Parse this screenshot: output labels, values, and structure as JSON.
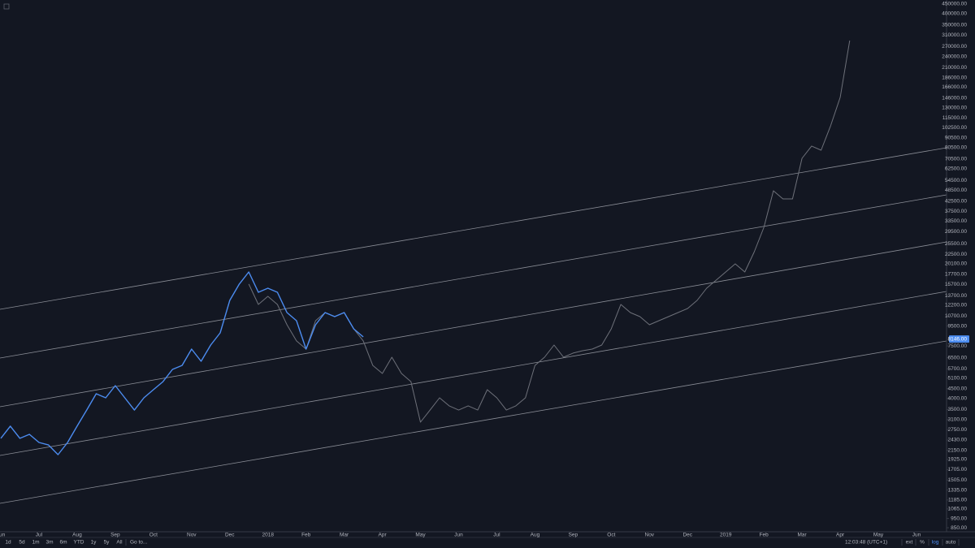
{
  "chart_data": {
    "type": "line",
    "log_scale": true,
    "grid": false,
    "categories": [
      "Jun",
      null,
      null,
      null,
      "Jul",
      null,
      null,
      null,
      "Aug",
      null,
      null,
      null,
      "Sep",
      null,
      null,
      null,
      "Oct",
      null,
      null,
      null,
      "Nov",
      null,
      null,
      null,
      "Dec",
      null,
      null,
      null,
      "2018",
      null,
      null,
      null,
      "Feb",
      null,
      null,
      null,
      "Mar",
      null,
      null,
      null,
      "Apr",
      null,
      null,
      null,
      "May",
      null,
      null,
      null,
      "Jun",
      null,
      null,
      null,
      "Jul",
      null,
      null,
      null,
      "Aug",
      null,
      null,
      null,
      "Sep",
      null,
      null,
      null,
      "Oct",
      null,
      null,
      null,
      "Nov",
      null,
      null,
      null,
      "Dec",
      null,
      null,
      null,
      "2019",
      null,
      null,
      null,
      "Feb",
      null,
      null,
      null,
      "Mar",
      null,
      null,
      null,
      "Apr",
      null,
      null,
      null,
      "May",
      null,
      null,
      null,
      "Jun"
    ],
    "series": [
      {
        "color": "#4c8cf0",
        "values": [
          2480,
          2870,
          2480,
          2600,
          2360,
          2290,
          2040,
          2360,
          2870,
          3480,
          4230,
          4030,
          4660,
          4030,
          3480,
          4030,
          4440,
          4890,
          5660,
          5940,
          7220,
          6240,
          7580,
          8770,
          12940,
          15720,
          18180,
          14260,
          14970,
          14260,
          11180,
          10140,
          7220,
          9660,
          11180,
          10650,
          11180,
          9200,
          8350,
          null,
          null,
          null,
          null,
          null,
          null,
          null,
          null,
          null,
          null,
          null,
          null,
          null,
          null,
          null,
          null,
          null,
          null,
          null,
          null,
          null,
          null,
          null,
          null,
          null,
          null,
          null,
          null,
          null,
          null,
          null,
          null,
          null,
          null,
          null,
          null,
          null,
          null,
          null,
          null,
          null,
          null,
          null,
          null,
          null,
          null,
          null,
          null,
          null,
          null,
          null,
          null,
          null,
          null,
          null,
          null,
          null,
          null
        ]
      },
      {
        "color": "#6e717a",
        "values": [
          null,
          null,
          null,
          null,
          null,
          null,
          null,
          null,
          null,
          null,
          null,
          null,
          null,
          null,
          null,
          null,
          null,
          null,
          null,
          null,
          null,
          null,
          null,
          null,
          null,
          null,
          15720,
          12320,
          13580,
          12320,
          9660,
          7960,
          7220,
          10140,
          11180,
          10650,
          11180,
          9200,
          7960,
          5940,
          5390,
          6550,
          5390,
          4890,
          3010,
          3480,
          4030,
          3660,
          3480,
          3660,
          3480,
          4440,
          4030,
          3480,
          3660,
          4030,
          5940,
          6550,
          7580,
          6550,
          6880,
          7080,
          7220,
          7580,
          9200,
          12320,
          11180,
          10650,
          9660,
          10140,
          10650,
          11180,
          11740,
          12940,
          14970,
          16490,
          18180,
          20040,
          18180,
          23190,
          31030,
          48080,
          43620,
          43620,
          70920,
          82090,
          78170,
          104700,
          147100,
          290500,
          null,
          null,
          null,
          null,
          null,
          null,
          null
        ]
      }
    ],
    "ylim": [
      810,
      472000
    ],
    "yticks": [
      {
        "value": 450000,
        "label": "450000.00"
      },
      {
        "value": 400000,
        "label": "400000.00"
      },
      {
        "value": 350000,
        "label": "350000.00"
      },
      {
        "value": 310000,
        "label": "310000.00"
      },
      {
        "value": 270000,
        "label": "270000.00"
      },
      {
        "value": 240000,
        "label": "240000.00"
      },
      {
        "value": 210000,
        "label": "210000.00"
      },
      {
        "value": 186000,
        "label": "186000.00"
      },
      {
        "value": 166000,
        "label": "166000.00"
      },
      {
        "value": 146000,
        "label": "146000.00"
      },
      {
        "value": 130000,
        "label": "130000.00"
      },
      {
        "value": 115000,
        "label": "115000.00"
      },
      {
        "value": 102500,
        "label": "102500.00"
      },
      {
        "value": 90500,
        "label": "90500.00"
      },
      {
        "value": 80500,
        "label": "80500.00"
      },
      {
        "value": 70500,
        "label": "70500.00"
      },
      {
        "value": 62500,
        "label": "62500.00"
      },
      {
        "value": 54500,
        "label": "54500.00"
      },
      {
        "value": 48500,
        "label": "48500.00"
      },
      {
        "value": 42500,
        "label": "42500.00"
      },
      {
        "value": 37500,
        "label": "37500.00"
      },
      {
        "value": 33500,
        "label": "33500.00"
      },
      {
        "value": 29500,
        "label": "29500.00"
      },
      {
        "value": 25500,
        "label": "25500.00"
      },
      {
        "value": 22500,
        "label": "22500.00"
      },
      {
        "value": 20100,
        "label": "20100.00"
      },
      {
        "value": 17700,
        "label": "17700.00"
      },
      {
        "value": 15700,
        "label": "15700.00"
      },
      {
        "value": 13700,
        "label": "13700.00"
      },
      {
        "value": 12200,
        "label": "12200.00"
      },
      {
        "value": 10700,
        "label": "10700.00"
      },
      {
        "value": 9500,
        "label": "9500.00"
      },
      {
        "value": 7500,
        "label": "7500.00"
      },
      {
        "value": 6500,
        "label": "6500.00"
      },
      {
        "value": 5700,
        "label": "5700.00"
      },
      {
        "value": 5100,
        "label": "5100.00"
      },
      {
        "value": 4500,
        "label": "4500.00"
      },
      {
        "value": 4000,
        "label": "4000.00"
      },
      {
        "value": 3500,
        "label": "3500.00"
      },
      {
        "value": 3100,
        "label": "3100.00"
      },
      {
        "value": 2750,
        "label": "2750.00"
      },
      {
        "value": 2430,
        "label": "2430.00"
      },
      {
        "value": 2150,
        "label": "2150.00"
      },
      {
        "value": 1925,
        "label": "1925.00"
      },
      {
        "value": 1705,
        "label": "1705.00"
      },
      {
        "value": 1505,
        "label": "1505.00"
      },
      {
        "value": 1335,
        "label": "1335.00"
      },
      {
        "value": 1185,
        "label": "1185.00"
      },
      {
        "value": 1065,
        "label": "1065.00"
      },
      {
        "value": 950,
        "label": "950.00"
      },
      {
        "value": 850,
        "label": "850.00"
      }
    ],
    "last_price": {
      "value": 8146,
      "label": "8146.00",
      "color": "#4c8cf0"
    }
  },
  "toolbar": {
    "ranges": [
      "1d",
      "5d",
      "1m",
      "3m",
      "6m",
      "YTD",
      "1y",
      "5y",
      "All"
    ],
    "goto": "Go to...",
    "time": "12:03:48 (UTC+1)",
    "options": [
      "ext",
      "%",
      "log",
      "auto"
    ]
  }
}
